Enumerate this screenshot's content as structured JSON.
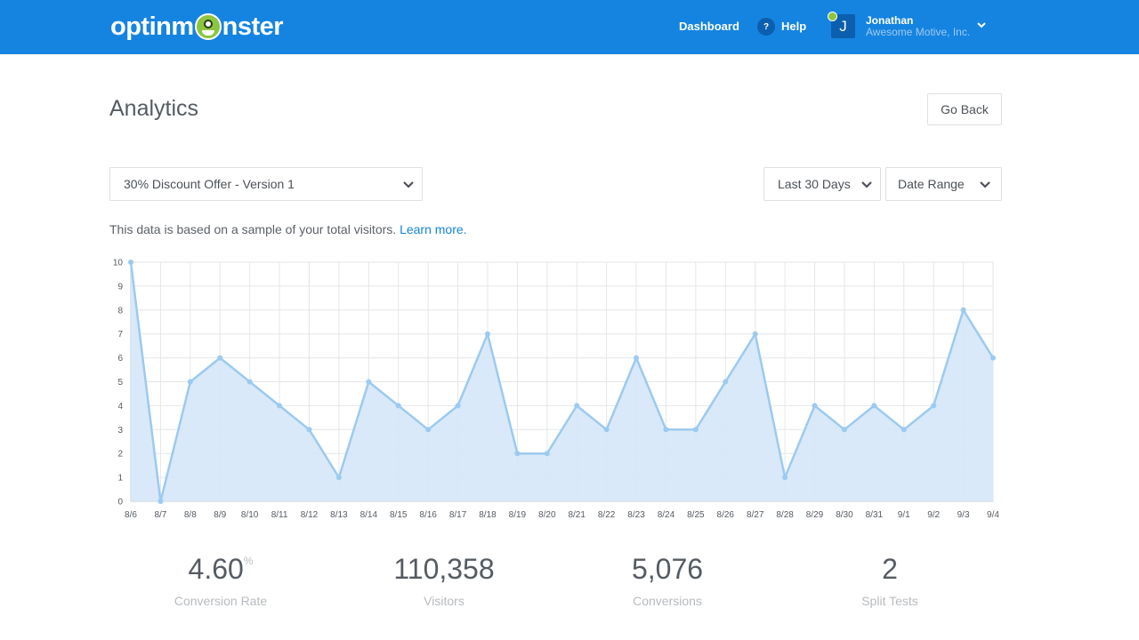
{
  "header": {
    "logo_text_left": "optinm",
    "logo_text_right": "nster",
    "nav_dashboard": "Dashboard",
    "help_icon_glyph": "?",
    "nav_help": "Help",
    "avatar_initial": "J",
    "user_name": "Jonathan",
    "user_company": "Awesome Motive, Inc.",
    "brand_color": "#1584e0"
  },
  "page": {
    "title": "Analytics",
    "go_back_label": "Go Back",
    "campaign_select": "30% Discount Offer - Version 1",
    "period_select": "Last 30 Days",
    "date_range_select": "Date Range",
    "notice_text": "This data is based on a sample of your total visitors.",
    "notice_link": "Learn more."
  },
  "chart_data": {
    "type": "area",
    "x": [
      "8/6",
      "8/7",
      "8/8",
      "8/9",
      "8/10",
      "8/11",
      "8/12",
      "8/13",
      "8/14",
      "8/15",
      "8/16",
      "8/17",
      "8/18",
      "8/19",
      "8/20",
      "8/21",
      "8/22",
      "8/23",
      "8/24",
      "8/25",
      "8/26",
      "8/27",
      "8/28",
      "8/29",
      "8/30",
      "8/31",
      "9/1",
      "9/2",
      "9/3",
      "9/4"
    ],
    "values": [
      10,
      0,
      5,
      6,
      5,
      4,
      3,
      1,
      5,
      4,
      3,
      4,
      7,
      2,
      2,
      4,
      3,
      6,
      3,
      3,
      5,
      7,
      1,
      4,
      3,
      4,
      3,
      4,
      8,
      6
    ],
    "yticks": [
      "0",
      "1",
      "2",
      "3",
      "4",
      "5",
      "6",
      "7",
      "8",
      "9",
      "10"
    ],
    "ylim": [
      0,
      10
    ],
    "grid": true,
    "line_color": "#9ccaf0",
    "fill_color": "#d5e7f8"
  },
  "stats": [
    {
      "value": "4.60",
      "suffix": "%",
      "label": "Conversion Rate"
    },
    {
      "value": "110,358",
      "suffix": "",
      "label": "Visitors"
    },
    {
      "value": "5,076",
      "suffix": "",
      "label": "Conversions"
    },
    {
      "value": "2",
      "suffix": "",
      "label": "Split Tests"
    }
  ]
}
